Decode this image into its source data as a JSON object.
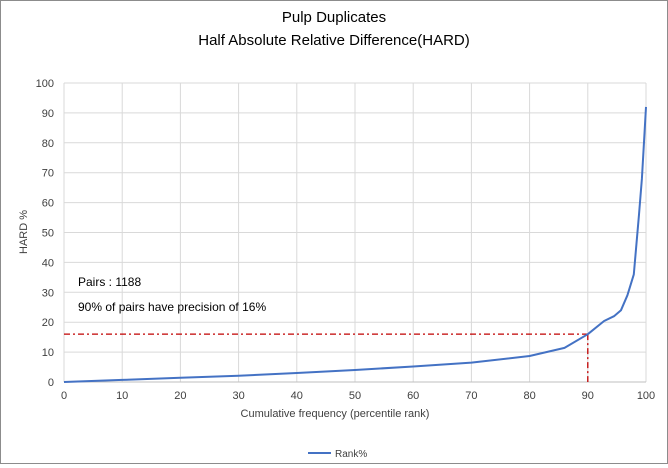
{
  "chart_data": {
    "type": "line",
    "title": "Pulp Duplicates",
    "subtitle": "Half Absolute Relative Difference(HARD)",
    "xlabel": "Cumulative frequency (percentile rank)",
    "ylabel": "HARD %",
    "xlim": [
      0,
      100
    ],
    "ylim": [
      0,
      100
    ],
    "xticks": [
      0,
      10,
      20,
      30,
      40,
      50,
      60,
      70,
      80,
      90,
      100
    ],
    "yticks": [
      0,
      10,
      20,
      30,
      40,
      50,
      60,
      70,
      80,
      90,
      100
    ],
    "grid": true,
    "legend": "bottom",
    "series": [
      {
        "name": "Rank%",
        "color": "#4472c4",
        "x": [
          0,
          10,
          20,
          30,
          40,
          50,
          60,
          70,
          80,
          86,
          90,
          92.8,
          94.5,
          95.7,
          96.8,
          97.9,
          98.8,
          99.3,
          99.7,
          100
        ],
        "y": [
          0,
          0.7,
          1.4,
          2.1,
          3,
          4,
          5.2,
          6.5,
          8.7,
          11.4,
          16,
          20.4,
          22,
          24,
          29,
          36,
          56,
          68,
          82,
          92
        ]
      }
    ],
    "annotations": {
      "pairs": "Pairs : 1188",
      "precision": "90% of pairs have precision of 16%",
      "reference_x": 90,
      "reference_y": 16,
      "reference_color": "#c00000"
    }
  }
}
